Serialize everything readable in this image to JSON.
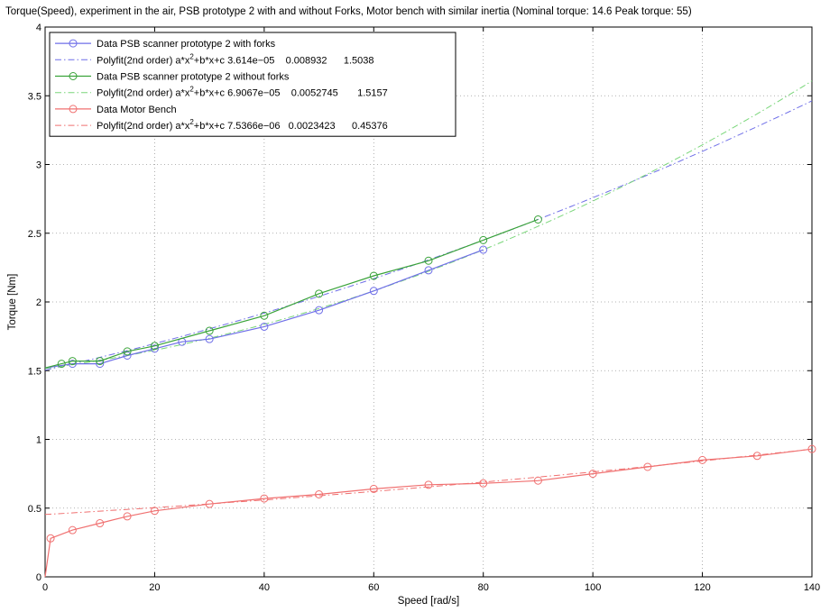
{
  "chart_data": {
    "type": "line",
    "title": "Torque(Speed), experiment in the air, PSB prototype 2 with and without Forks, Motor bench with similar inertia (Nominal torque: 14.6 Peak torque: 55)",
    "xlabel": "Speed [rad/s]",
    "ylabel": "Torque [Nm]",
    "xlim": [
      0,
      140
    ],
    "ylim": [
      0,
      4
    ],
    "xticks": [
      "0",
      "20",
      "40",
      "60",
      "80",
      "100",
      "120",
      "140"
    ],
    "yticks": [
      "0",
      "0.5",
      "1",
      "1.5",
      "2",
      "2.5",
      "3",
      "3.5",
      "4"
    ],
    "grid": "dotted",
    "legend_position": "top-left",
    "series": [
      {
        "name": "Data PSB scanner prototype 2 with forks",
        "style": "solid-circle",
        "color": "#6f6fe8",
        "x": [
          0,
          5,
          10,
          15,
          20,
          25,
          30,
          40,
          50,
          60,
          70,
          80
        ],
        "y": [
          1.52,
          1.55,
          1.55,
          1.61,
          1.66,
          1.71,
          1.73,
          1.82,
          1.94,
          2.08,
          2.23,
          2.38
        ]
      },
      {
        "name": "Polyfit(2nd order) a*x",
        "exp": "2",
        "name_tail": "+b*x+c 3.614e−05    0.008932      1.5038",
        "style": "dashdot",
        "color": "#6f6fe8",
        "fit": [
          3.614e-05,
          0.008932,
          1.5038
        ],
        "xrange": [
          0,
          140
        ]
      },
      {
        "name": "Data PSB scanner prototype 2 without forks",
        "style": "solid-circle",
        "color": "#3aa33a",
        "x": [
          0,
          3,
          5,
          10,
          15,
          20,
          30,
          40,
          50,
          60,
          70,
          80,
          90
        ],
        "y": [
          1.52,
          1.55,
          1.57,
          1.57,
          1.64,
          1.68,
          1.79,
          1.9,
          2.06,
          2.19,
          2.3,
          2.45,
          2.6
        ]
      },
      {
        "name": "Polyfit(2nd order) a*x",
        "exp": "2",
        "name_tail": "+b*x+c 6.9067e−05    0.0052745       1.5157",
        "style": "dashdot",
        "color": "#7ad67a",
        "fit": [
          6.9067e-05,
          0.0052745,
          1.5157
        ],
        "xrange": [
          0,
          140
        ]
      },
      {
        "name": "Data Motor Bench",
        "style": "solid-circle",
        "color": "#f07070",
        "x": [
          0,
          1,
          5,
          10,
          15,
          20,
          30,
          40,
          50,
          60,
          70,
          80,
          90,
          100,
          110,
          120,
          130,
          140
        ],
        "y": [
          0.0,
          0.28,
          0.34,
          0.39,
          0.44,
          0.48,
          0.53,
          0.57,
          0.6,
          0.64,
          0.67,
          0.68,
          0.7,
          0.75,
          0.8,
          0.85,
          0.88,
          0.93
        ]
      },
      {
        "name": "Polyfit(2nd order) a*x",
        "exp": "2",
        "name_tail": "+b*x+c 7.5366e−06   0.0023423      0.45376",
        "style": "dashdot",
        "color": "#f07070",
        "fit": [
          7.5366e-06,
          0.0023423,
          0.45376
        ],
        "xrange": [
          0,
          140
        ]
      }
    ]
  }
}
